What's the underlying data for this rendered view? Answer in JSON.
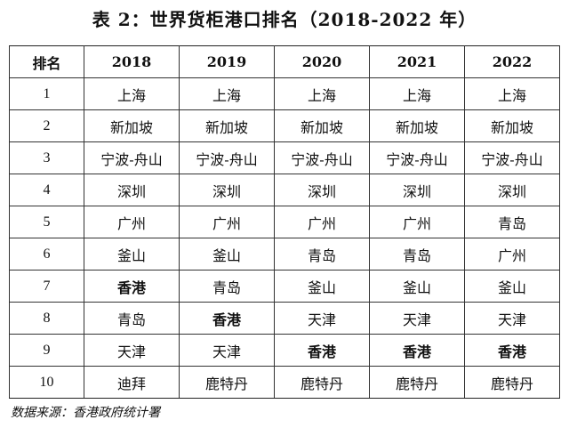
{
  "title": "表 2：世界货柜港口排名（2018-2022 年）",
  "table": {
    "headers": [
      "排名",
      "2018",
      "2019",
      "2020",
      "2021",
      "2022"
    ],
    "rows": [
      [
        "1",
        "上海",
        "上海",
        "上海",
        "上海",
        "上海"
      ],
      [
        "2",
        "新加坡",
        "新加坡",
        "新加坡",
        "新加坡",
        "新加坡"
      ],
      [
        "3",
        "宁波-舟山",
        "宁波-舟山",
        "宁波-舟山",
        "宁波-舟山",
        "宁波-舟山"
      ],
      [
        "4",
        "深圳",
        "深圳",
        "深圳",
        "深圳",
        "深圳"
      ],
      [
        "5",
        "广州",
        "广州",
        "广州",
        "广州",
        "青岛"
      ],
      [
        "6",
        "釜山",
        "釜山",
        "青岛",
        "青岛",
        "广州"
      ],
      [
        "7",
        "香港",
        "青岛",
        "釜山",
        "釜山",
        "釜山"
      ],
      [
        "8",
        "青岛",
        "香港",
        "天津",
        "天津",
        "天津"
      ],
      [
        "9",
        "天津",
        "天津",
        "香港",
        "香港",
        "香港"
      ],
      [
        "10",
        "迪拜",
        "鹿特丹",
        "鹿特丹",
        "鹿特丹",
        "鹿特丹"
      ]
    ],
    "highlight_value": "香港"
  },
  "source": "数据来源：香港政府统计署"
}
